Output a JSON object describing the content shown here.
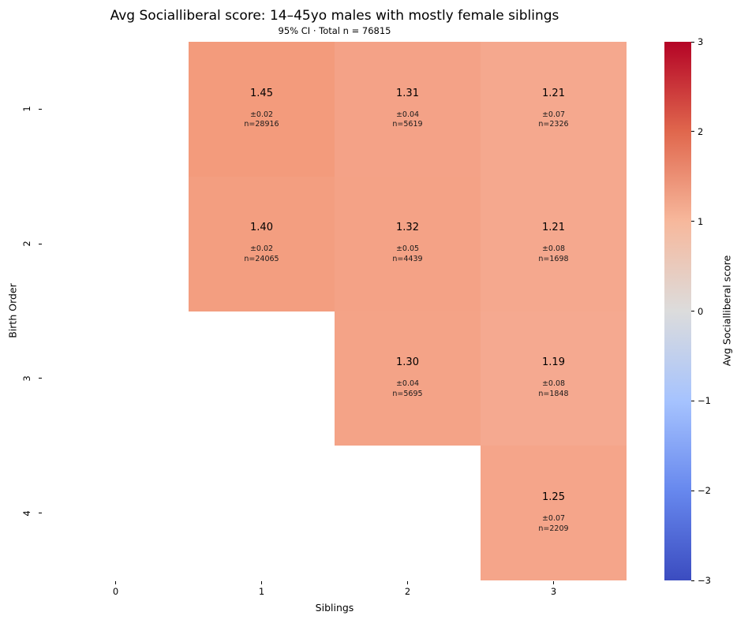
{
  "title": "Avg Socialliberal score: 14–45yo males with mostly female siblings",
  "subtitle": "95% CI · Total n = 76815",
  "chart_data": {
    "type": "heatmap",
    "title": "Avg Socialliberal score: 14–45yo males with mostly female siblings",
    "subtitle": "95% CI · Total n = 76815",
    "xlabel": "Siblings",
    "ylabel": "Birth Order",
    "x_ticks": [
      "0",
      "1",
      "2",
      "3"
    ],
    "y_ticks": [
      "1",
      "2",
      "3",
      "4"
    ],
    "total_n": 76815,
    "value_range": [
      -3,
      3
    ],
    "matrix_note": "rows = Birth Order 1..4 (top to bottom), cols = Siblings 0..3; null = no data (white)",
    "matrix": [
      [
        null,
        1.45,
        1.31,
        1.21
      ],
      [
        null,
        1.4,
        1.32,
        1.21
      ],
      [
        null,
        null,
        1.3,
        1.19
      ],
      [
        null,
        null,
        null,
        1.25
      ]
    ],
    "cells": [
      {
        "row": 0,
        "col": 1,
        "value": "1.45",
        "ci": "±0.02",
        "n": "n=28916",
        "color": "#f39b7c"
      },
      {
        "row": 0,
        "col": 2,
        "value": "1.31",
        "ci": "±0.04",
        "n": "n=5619",
        "color": "#f4a287"
      },
      {
        "row": 0,
        "col": 3,
        "value": "1.21",
        "ci": "±0.07",
        "n": "n=2326",
        "color": "#f5a88e"
      },
      {
        "row": 1,
        "col": 1,
        "value": "1.40",
        "ci": "±0.02",
        "n": "n=24065",
        "color": "#f39e80"
      },
      {
        "row": 1,
        "col": 2,
        "value": "1.32",
        "ci": "±0.05",
        "n": "n=4439",
        "color": "#f4a286"
      },
      {
        "row": 1,
        "col": 3,
        "value": "1.21",
        "ci": "±0.08",
        "n": "n=1698",
        "color": "#f5a88e"
      },
      {
        "row": 2,
        "col": 2,
        "value": "1.30",
        "ci": "±0.04",
        "n": "n=5695",
        "color": "#f4a387"
      },
      {
        "row": 2,
        "col": 3,
        "value": "1.19",
        "ci": "±0.08",
        "n": "n=1848",
        "color": "#f5a990"
      },
      {
        "row": 3,
        "col": 3,
        "value": "1.25",
        "ci": "±0.07",
        "n": "n=2209",
        "color": "#f5a58a"
      }
    ],
    "colorbar": {
      "label": "Avg Socialliberal score",
      "ticks": [
        "3",
        "2",
        "1",
        "0",
        "−1",
        "−2",
        "−3"
      ],
      "min": -3,
      "max": 3,
      "colormap": "coolwarm",
      "gradient_stops": [
        "#b40426",
        "#e0674d",
        "#f7b89c",
        "#dcdcdc",
        "#a6c3fe",
        "#6788ee",
        "#3b4cc0"
      ]
    },
    "legend_position": "right",
    "grid": false
  }
}
